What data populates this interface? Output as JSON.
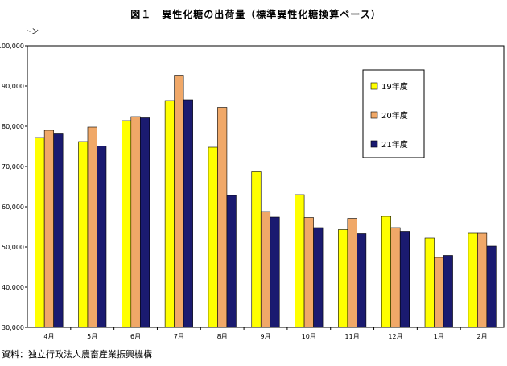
{
  "chart_data": {
    "type": "bar",
    "title": "図１　異性化糖の出荷量（標準異性化糖換算ベース）",
    "ylabel": "トン",
    "source": "資料：独立行政法人農畜産業振興機構",
    "categories": [
      "4月",
      "5月",
      "6月",
      "7月",
      "8月",
      "9月",
      "10月",
      "11月",
      "12月",
      "1月",
      "2月"
    ],
    "ylim": [
      30000,
      100000
    ],
    "yticks": [
      "30,000",
      "40,000",
      "50,000",
      "60,000",
      "70,000",
      "80,000",
      "90,000",
      "100,000"
    ],
    "ytick_values": [
      30000,
      40000,
      50000,
      60000,
      70000,
      80000,
      90000,
      100000
    ],
    "grid": false,
    "legend_position": "upper-right",
    "series": [
      {
        "name": "19年度",
        "color": "#ffff00",
        "values": [
          77200,
          76200,
          81400,
          86400,
          74800,
          68700,
          63000,
          54300,
          57600,
          52200,
          53400
        ]
      },
      {
        "name": "20年度",
        "color": "#f0a868",
        "values": [
          79000,
          79800,
          82400,
          92700,
          84700,
          58800,
          57300,
          57100,
          54800,
          47400,
          53400
        ]
      },
      {
        "name": "21年度",
        "color": "#1a1a70",
        "values": [
          78300,
          75100,
          82100,
          86600,
          62800,
          57400,
          54800,
          53300,
          53900,
          47900,
          50200
        ]
      }
    ]
  }
}
